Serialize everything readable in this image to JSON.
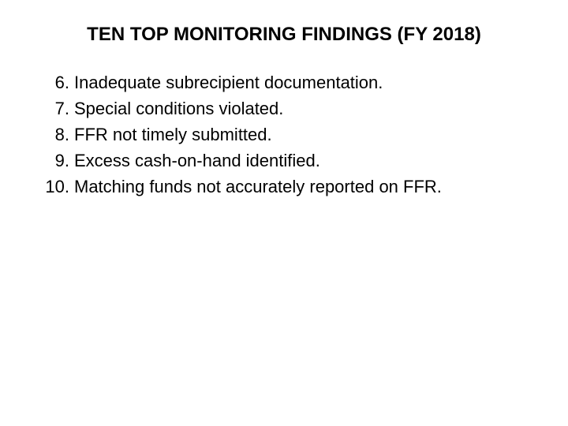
{
  "title": "TEN TOP MONITORING FINDINGS (FY 2018)",
  "style": {
    "title_fontsize": 24,
    "title_fontweight": "bold",
    "body_fontsize": 22,
    "text_color": "#000000",
    "background_color": "#ffffff",
    "font_family": "Arial, Helvetica, sans-serif"
  },
  "findings": [
    {
      "number": "6.",
      "text": "Inadequate subrecipient documentation."
    },
    {
      "number": "7.",
      "text": "Special conditions violated."
    },
    {
      "number": "8.",
      "text": "FFR not timely submitted."
    },
    {
      "number": "9.",
      "text": "Excess cash-on-hand identified."
    },
    {
      "number": "10.",
      "text": "Matching funds not accurately reported on FFR."
    }
  ]
}
